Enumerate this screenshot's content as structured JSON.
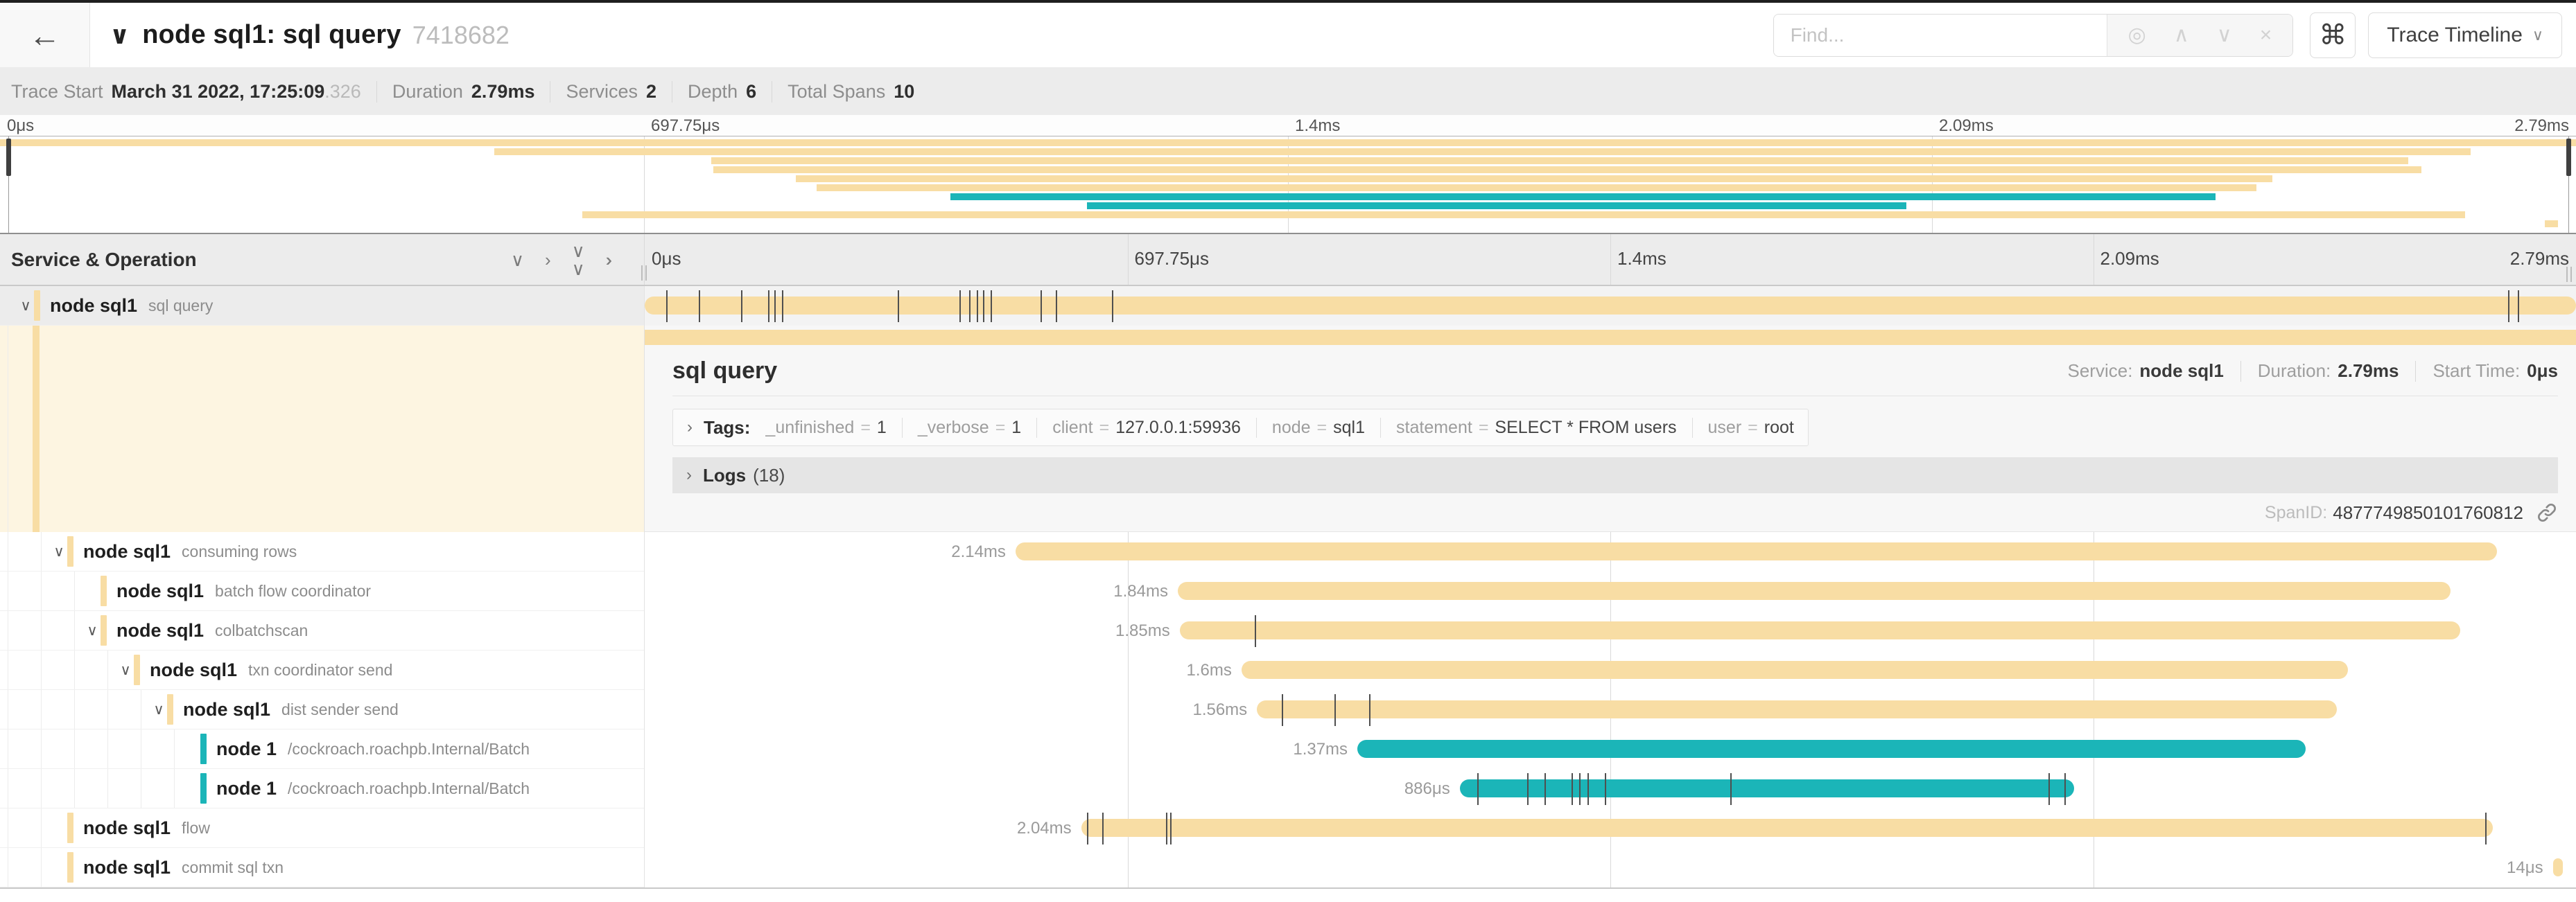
{
  "colors": {
    "tan": "#F8DDA4",
    "teal": "#1BB5B8"
  },
  "header": {
    "back": "←",
    "collapse_chevron": "∨",
    "title": "node sql1: sql query",
    "trace_id": "7418682",
    "find_placeholder": "Find...",
    "shortcut_key": "⌘",
    "view_selector": "Trace Timeline",
    "view_selector_caret": "∨"
  },
  "summary": [
    {
      "label": "Trace Start",
      "value": "March 31 2022, 17:25:09",
      "suffix": ".326"
    },
    {
      "label": "Duration",
      "value": "2.79ms"
    },
    {
      "label": "Services",
      "value": "2"
    },
    {
      "label": "Depth",
      "value": "6"
    },
    {
      "label": "Total Spans",
      "value": "10"
    }
  ],
  "timeline": {
    "ticks": [
      "0μs",
      "697.75μs",
      "1.4ms",
      "2.09ms",
      "2.79ms"
    ],
    "tick_positions": [
      0,
      25,
      50,
      75,
      100
    ],
    "header_left": "Service & Operation"
  },
  "detail": {
    "title": "sql query",
    "service_label": "Service:",
    "service": "node sql1",
    "duration_label": "Duration:",
    "duration": "2.79ms",
    "start_label": "Start Time:",
    "start": "0μs",
    "tags_label": "Tags:",
    "tags": [
      {
        "key": "_unfinished",
        "value": "1"
      },
      {
        "key": "_verbose",
        "value": "1"
      },
      {
        "key": "client",
        "value": "127.0.0.1:59936"
      },
      {
        "key": "node",
        "value": "sql1"
      },
      {
        "key": "statement",
        "value": "SELECT * FROM users"
      },
      {
        "key": "user",
        "value": "root"
      }
    ],
    "logs_label": "Logs",
    "logs_count": "(18)",
    "span_id_label": "SpanID:",
    "span_id": "4877749850101760812"
  },
  "spans": [
    {
      "service": "node sql1",
      "operation": "sql query",
      "color": "tan",
      "depth": 0,
      "chevron": true,
      "selected": true,
      "start": 0,
      "width": 100,
      "label": "",
      "ticks": [
        1.1,
        2.8,
        5.0,
        6.4,
        6.7,
        7.1,
        13.1,
        16.3,
        16.8,
        17.2,
        17.5,
        17.9,
        20.5,
        21.3,
        24.2,
        96.5,
        97.0
      ]
    },
    {
      "service": "node sql1",
      "operation": "consuming rows",
      "color": "tan",
      "depth": 1,
      "chevron": true,
      "start": 19.2,
      "width": 76.7,
      "label": "2.14ms",
      "ticks": []
    },
    {
      "service": "node sql1",
      "operation": "batch flow coordinator",
      "color": "tan",
      "depth": 2,
      "chevron": false,
      "start": 27.6,
      "width": 65.9,
      "label": "1.84ms",
      "ticks": []
    },
    {
      "service": "node sql1",
      "operation": "colbatchscan",
      "color": "tan",
      "depth": 2,
      "chevron": true,
      "start": 27.7,
      "width": 66.3,
      "label": "1.85ms",
      "ticks": [
        31.6
      ]
    },
    {
      "service": "node sql1",
      "operation": "txn coordinator send",
      "color": "tan",
      "depth": 3,
      "chevron": true,
      "start": 30.9,
      "width": 57.3,
      "label": "1.6ms",
      "ticks": []
    },
    {
      "service": "node sql1",
      "operation": "dist sender send",
      "color": "tan",
      "depth": 4,
      "chevron": true,
      "start": 31.7,
      "width": 55.9,
      "label": "1.56ms",
      "ticks": [
        33.0,
        35.7,
        37.5
      ]
    },
    {
      "service": "node 1",
      "operation": "/cockroach.roachpb.Internal/Batch",
      "color": "teal",
      "depth": 5,
      "chevron": false,
      "start": 36.9,
      "width": 49.1,
      "label": "1.37ms",
      "ticks": []
    },
    {
      "service": "node 1",
      "operation": "/cockroach.roachpb.Internal/Batch",
      "color": "teal",
      "depth": 5,
      "chevron": false,
      "start": 42.2,
      "width": 31.8,
      "label": "886μs",
      "ticks": [
        43.1,
        45.7,
        46.6,
        48.0,
        48.4,
        48.8,
        49.7,
        56.2,
        72.7,
        73.5
      ]
    },
    {
      "service": "node sql1",
      "operation": "flow",
      "color": "tan",
      "depth": 1,
      "chevron": false,
      "start": 22.6,
      "width": 73.1,
      "label": "2.04ms",
      "ticks": [
        22.9,
        23.7,
        27.0,
        27.2,
        95.3
      ]
    },
    {
      "service": "node sql1",
      "operation": "commit sql txn",
      "color": "tan",
      "depth": 1,
      "chevron": false,
      "start": 98.8,
      "width": 0.5,
      "label": "14μs",
      "ticks": []
    }
  ]
}
